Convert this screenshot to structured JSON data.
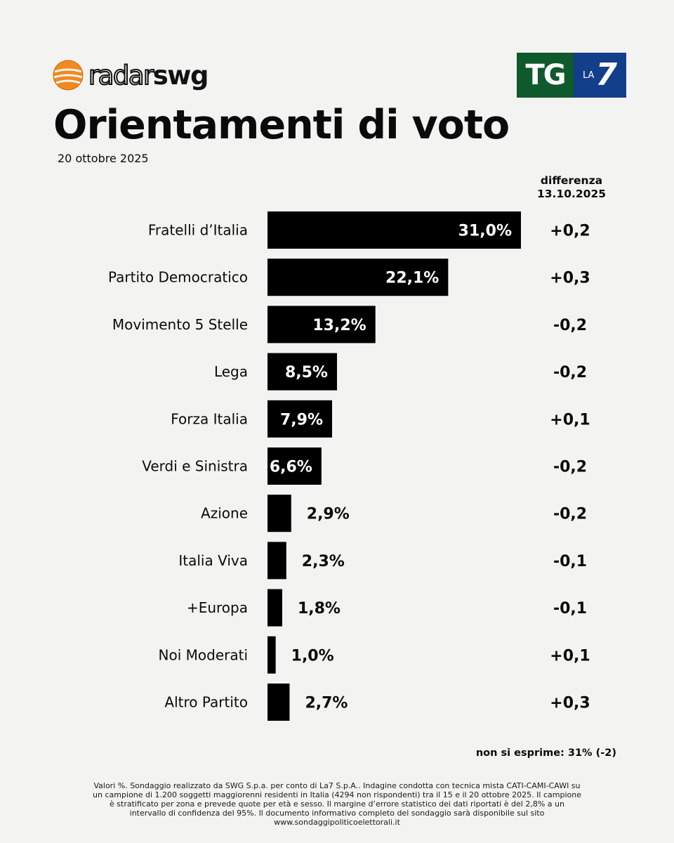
{
  "brand": {
    "radar_word1": "radar",
    "radar_word2": "swg",
    "tg_main": "TG",
    "tg_la": "LA",
    "tg_seven": "7",
    "orange": "#f08a1e",
    "tg_green": "#0f5a2c",
    "tg_blue": "#123e8a"
  },
  "title": "Orientamenti di voto",
  "date": "20 ottobre 2025",
  "diff_header": {
    "line1": "differenza",
    "line2": "13.10.2025"
  },
  "chart_data": {
    "type": "bar",
    "orientation": "horizontal",
    "title": "Orientamenti di voto",
    "unit": "%",
    "categories": [
      "Fratelli d’Italia",
      "Partito Democratico",
      "Movimento 5 Stelle",
      "Lega",
      "Forza Italia",
      "Verdi e Sinistra",
      "Azione",
      "Italia Viva",
      "+Europa",
      "Noi Moderati",
      "Altro Partito"
    ],
    "values": [
      31.0,
      22.1,
      13.2,
      8.5,
      7.9,
      6.6,
      2.9,
      2.3,
      1.8,
      1.0,
      2.7
    ],
    "value_labels": [
      "31,0%",
      "22,1%",
      "13,2%",
      "8,5%",
      "7,9%",
      "6,6%",
      "2,9%",
      "2,3%",
      "1,8%",
      "1,0%",
      "2,7%"
    ],
    "differences": [
      "+0,2",
      "+0,3",
      "-0,2",
      "-0,2",
      "+0,1",
      "-0,2",
      "-0,2",
      "-0,1",
      "-0,1",
      "+0,1",
      "+0,3"
    ],
    "xlim": [
      0,
      31.0
    ],
    "bar_color": "#000000"
  },
  "no_answer": "non si esprime: 31% (-2)",
  "footnote": "Valori %. Sondaggio realizzato da SWG S.p.a. per conto di La7 S.p.A.. Indagine condotta con tecnica mista CATI-CAMI-CAWI su un campione di 1.200 soggetti maggiorenni residenti in Italia (4294 non rispondenti) tra il 15 e il 20 ottobre 2025. Il campione è stratificato per zona e prevede quote per età e sesso. Il margine d’errore statistico dei dati riportati è del 2,8% a un intervallo di confidenza del 95%. Il documento informativo completo del sondaggio sarà disponibile sul sito www.sondaggipoliticoelettorali.it"
}
